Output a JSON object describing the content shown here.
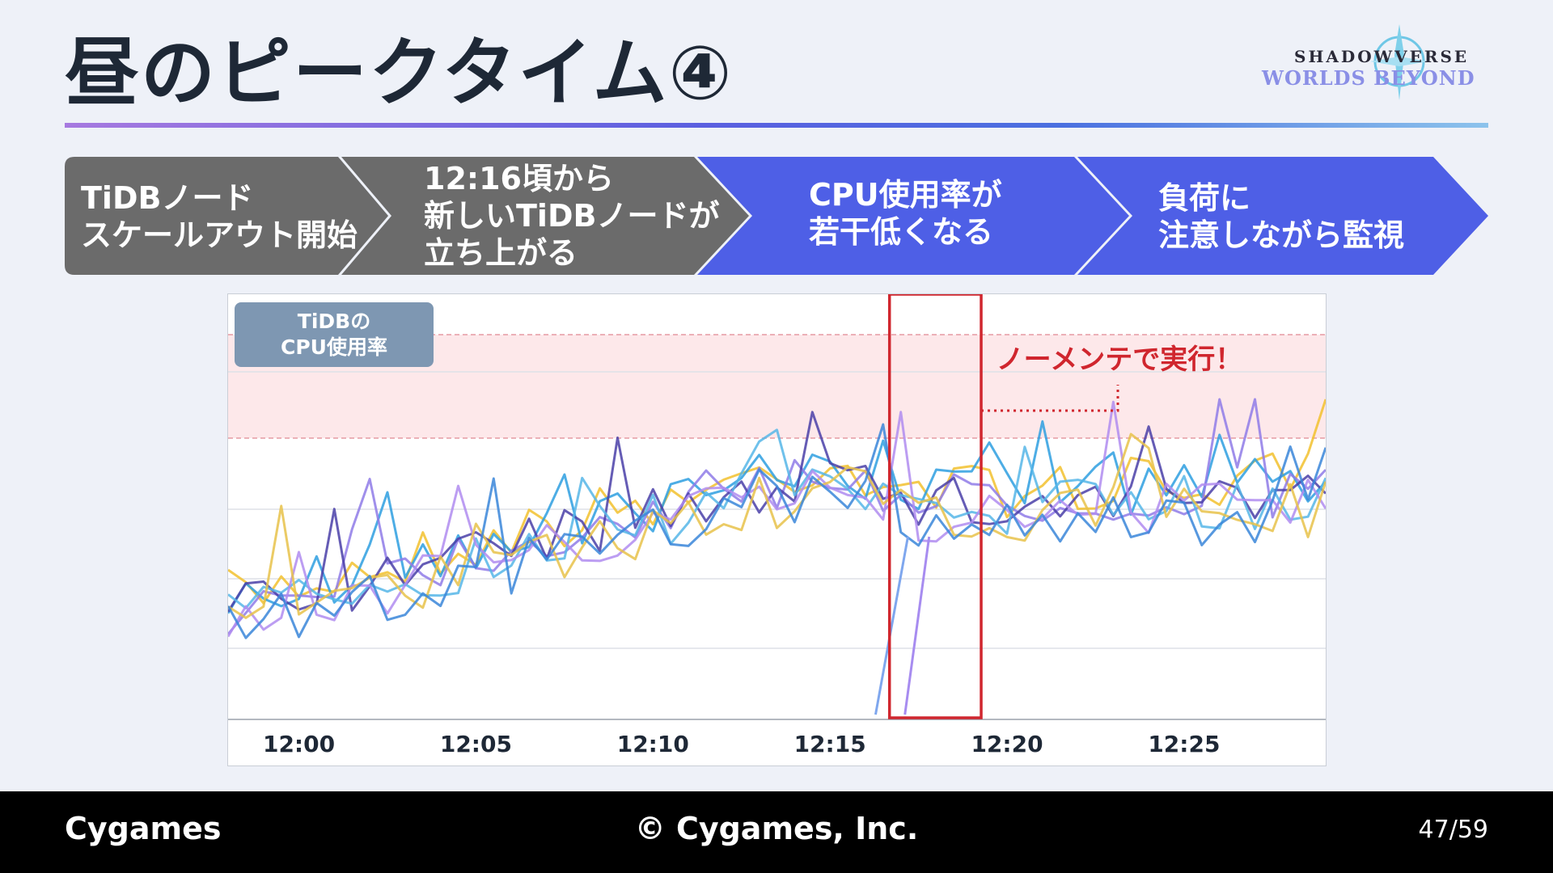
{
  "slide": {
    "title": "昼のピークタイム④",
    "logo": {
      "line1": "SHADOWVERSE",
      "line2": "WORLDS BEYOND"
    }
  },
  "steps": [
    {
      "text": "TiDBノード\nスケールアウト開始",
      "color": "#6b6b6b"
    },
    {
      "text": "12:16頃から\n新しいTiDBノードが\n立ち上がる",
      "color": "#6b6b6b"
    },
    {
      "text": "CPU使用率が\n若干低くなる",
      "color": "#4e5fe6"
    },
    {
      "text": "負荷に\n注意しながら監視",
      "color": "#4e5fe6"
    }
  ],
  "chart_data": {
    "type": "line",
    "title": "TiDBの\nCPU使用率",
    "x_tick_labels": [
      "12:00",
      "12:05",
      "12:10",
      "12:15",
      "12:20",
      "12:25"
    ],
    "x_range": [
      "11:58",
      "12:29"
    ],
    "highlight": {
      "label": "ノーメンテで実行！",
      "x_start": "12:17",
      "x_end": "12:20"
    },
    "series_colors": [
      "#f2c12e",
      "#2e9fe0",
      "#8f7be8",
      "#4a3fa8",
      "#56b6e8",
      "#b08cf0",
      "#e8c24a",
      "#3a86d9"
    ]
  },
  "footer": {
    "brand": "Cygames",
    "copyright": "© Cygames, Inc.",
    "page": "47/59"
  }
}
